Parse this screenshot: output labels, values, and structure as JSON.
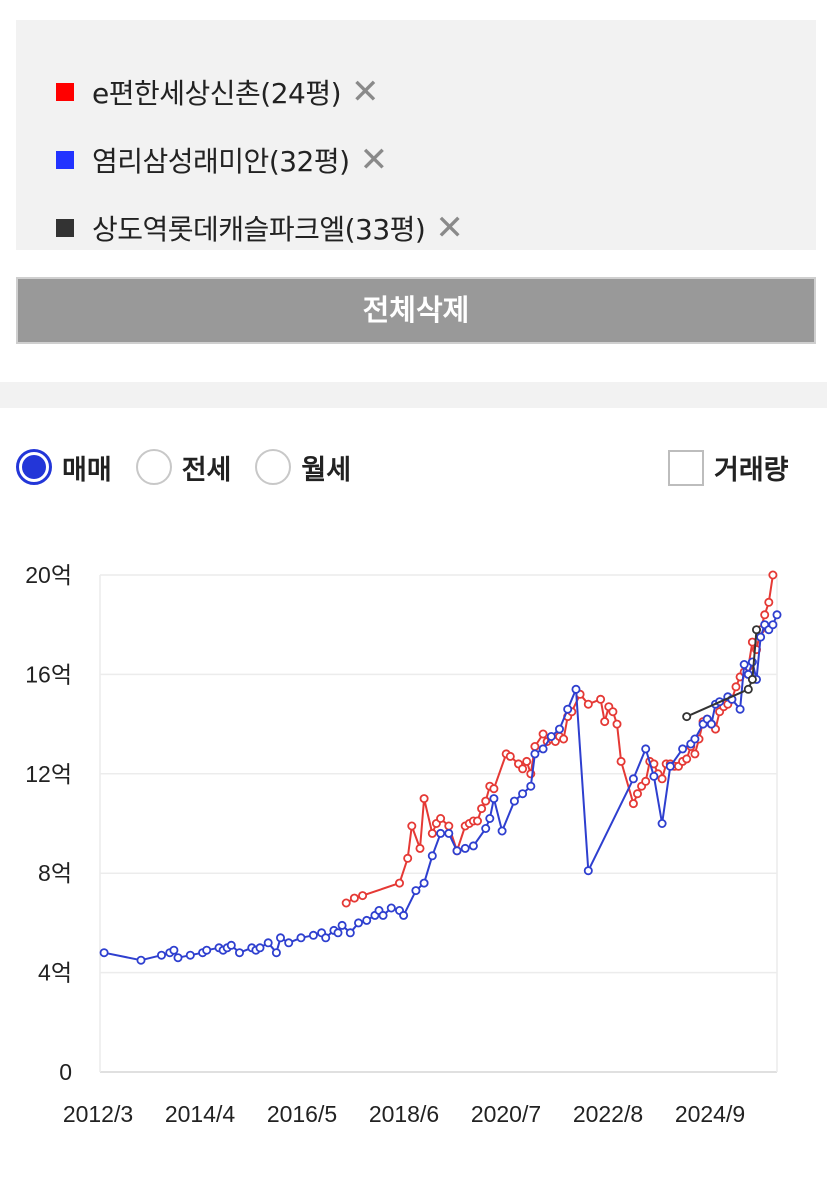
{
  "comparison": {
    "items": [
      {
        "name": "e편한세상신촌(24평)",
        "color": "#ff0000",
        "remove_icon": "close-icon"
      },
      {
        "name": "염리삼성래미안(32평)",
        "color": "#2233ff",
        "remove_icon": "close-icon"
      },
      {
        "name": "상도역롯데캐슬파크엘(33평)",
        "color": "#333333",
        "remove_icon": "close-icon"
      }
    ],
    "remove_symbol": "✕",
    "delete_all_label": "전체삭제"
  },
  "filters": {
    "trade_types": [
      {
        "label": "매매",
        "selected": true
      },
      {
        "label": "전세",
        "selected": false
      },
      {
        "label": "월세",
        "selected": false
      }
    ],
    "volume_label": "거래량",
    "volume_checked": false
  },
  "chart_data": {
    "type": "line",
    "title": "",
    "xlabel": "",
    "ylabel": "",
    "x_tick_labels": [
      "2012/3",
      "2014/4",
      "2016/5",
      "2018/6",
      "2020/7",
      "2022/8",
      "2024/9"
    ],
    "y_tick_values": [
      0,
      4,
      8,
      12,
      16,
      20
    ],
    "y_tick_labels": [
      "0",
      "4억",
      "8억",
      "12억",
      "16억",
      "20억"
    ],
    "ylim": [
      0,
      20
    ],
    "xlim": [
      "2012-03",
      "2025-12"
    ],
    "grid": true,
    "legend": "top (separate list)",
    "series": [
      {
        "name": "e편한세상신촌(24평)",
        "color": "#e53935",
        "x": [
          "2017-03",
          "2017-05",
          "2017-07",
          "2018-04",
          "2018-06",
          "2018-07",
          "2018-09",
          "2018-10",
          "2018-12",
          "2019-01",
          "2019-02",
          "2019-04",
          "2019-06",
          "2019-08",
          "2019-09",
          "2019-10",
          "2019-11",
          "2019-12",
          "2020-01",
          "2020-02",
          "2020-03",
          "2020-06",
          "2020-07",
          "2020-09",
          "2020-10",
          "2020-11",
          "2020-12",
          "2021-01",
          "2021-03",
          "2021-04",
          "2021-05",
          "2021-06",
          "2021-07",
          "2021-08",
          "2021-09",
          "2021-10",
          "2021-12",
          "2022-02",
          "2022-05",
          "2022-06",
          "2022-07",
          "2022-08",
          "2022-09",
          "2022-10",
          "2023-01",
          "2023-02",
          "2023-03",
          "2023-04",
          "2023-05",
          "2023-06",
          "2023-07",
          "2023-08",
          "2023-09",
          "2023-10",
          "2023-11",
          "2023-12",
          "2024-01",
          "2024-02",
          "2024-03",
          "2024-04",
          "2024-05",
          "2024-06",
          "2024-07",
          "2024-08",
          "2024-09",
          "2024-10",
          "2024-11",
          "2024-12",
          "2025-01",
          "2025-02",
          "2025-03",
          "2025-04",
          "2025-05",
          "2025-06",
          "2025-07",
          "2025-08",
          "2025-09",
          "2025-10",
          "2025-11"
        ],
        "values": [
          6.8,
          7.0,
          7.1,
          7.6,
          8.6,
          9.9,
          9.0,
          11.0,
          9.6,
          10.0,
          10.2,
          9.9,
          8.9,
          9.9,
          10.0,
          10.1,
          10.1,
          10.6,
          10.9,
          11.5,
          11.4,
          12.8,
          12.7,
          12.4,
          12.2,
          12.5,
          12.0,
          13.1,
          13.6,
          13.3,
          13.4,
          13.3,
          13.5,
          13.4,
          14.3,
          14.5,
          15.2,
          14.8,
          15.0,
          14.1,
          14.7,
          14.5,
          14.0,
          12.5,
          10.8,
          11.2,
          11.5,
          11.7,
          12.5,
          12.4,
          12.0,
          11.8,
          12.4,
          12.4,
          12.3,
          12.3,
          12.5,
          12.6,
          13.1,
          12.8,
          13.4,
          14.1,
          14.2,
          14.0,
          13.8,
          14.5,
          14.7,
          14.8,
          15.0,
          15.5,
          15.9,
          16.1,
          16.3,
          17.3,
          17.0,
          17.8,
          18.4,
          18.9,
          20.0
        ]
      },
      {
        "name": "염리삼성래미안(32평)",
        "color": "#2e3fcf",
        "x": [
          "2012-04",
          "2013-01",
          "2013-06",
          "2013-08",
          "2013-09",
          "2013-10",
          "2014-01",
          "2014-04",
          "2014-05",
          "2014-08",
          "2014-09",
          "2014-10",
          "2014-11",
          "2015-01",
          "2015-04",
          "2015-05",
          "2015-06",
          "2015-08",
          "2015-10",
          "2015-11",
          "2016-01",
          "2016-04",
          "2016-07",
          "2016-09",
          "2016-10",
          "2016-12",
          "2017-01",
          "2017-02",
          "2017-04",
          "2017-06",
          "2017-08",
          "2017-10",
          "2017-11",
          "2017-12",
          "2018-02",
          "2018-04",
          "2018-05",
          "2018-08",
          "2018-10",
          "2018-12",
          "2019-02",
          "2019-04",
          "2019-06",
          "2019-08",
          "2019-10",
          "2020-01",
          "2020-02",
          "2020-03",
          "2020-05",
          "2020-08",
          "2020-10",
          "2020-12",
          "2021-01",
          "2021-03",
          "2021-05",
          "2021-07",
          "2021-09",
          "2021-11",
          "2022-02",
          "2023-01",
          "2023-04",
          "2023-06",
          "2023-08",
          "2023-10",
          "2024-01",
          "2024-03",
          "2024-04",
          "2024-06",
          "2024-07",
          "2024-08",
          "2024-09",
          "2024-10",
          "2024-12",
          "2025-01",
          "2025-03",
          "2025-04",
          "2025-05",
          "2025-06",
          "2025-07",
          "2025-08",
          "2025-09",
          "2025-10",
          "2025-11",
          "2025-12"
        ],
        "values": [
          4.8,
          4.5,
          4.7,
          4.8,
          4.9,
          4.6,
          4.7,
          4.8,
          4.9,
          5.0,
          4.9,
          5.0,
          5.1,
          4.8,
          5.0,
          4.9,
          5.0,
          5.2,
          4.8,
          5.4,
          5.2,
          5.4,
          5.5,
          5.6,
          5.4,
          5.7,
          5.6,
          5.9,
          5.6,
          6.0,
          6.1,
          6.3,
          6.5,
          6.3,
          6.6,
          6.5,
          6.3,
          7.3,
          7.6,
          8.7,
          9.6,
          9.6,
          8.9,
          9.0,
          9.1,
          9.8,
          10.2,
          11.0,
          9.7,
          10.9,
          11.2,
          11.5,
          12.8,
          13.0,
          13.5,
          13.8,
          14.6,
          15.4,
          8.1,
          11.8,
          13.0,
          11.9,
          10.0,
          12.3,
          13.0,
          13.2,
          13.4,
          14.0,
          14.2,
          14.0,
          14.8,
          14.9,
          15.1,
          15.0,
          14.6,
          16.4,
          16.0,
          16.5,
          15.8,
          17.5,
          18.0,
          17.8,
          18.0,
          18.4
        ]
      },
      {
        "name": "상도역롯데캐슬파크엘(33평)",
        "color": "#333333",
        "x": [
          "2024-02",
          "2025-05",
          "2025-06",
          "2025-07"
        ],
        "values": [
          14.3,
          15.4,
          15.8,
          17.8
        ]
      }
    ]
  }
}
